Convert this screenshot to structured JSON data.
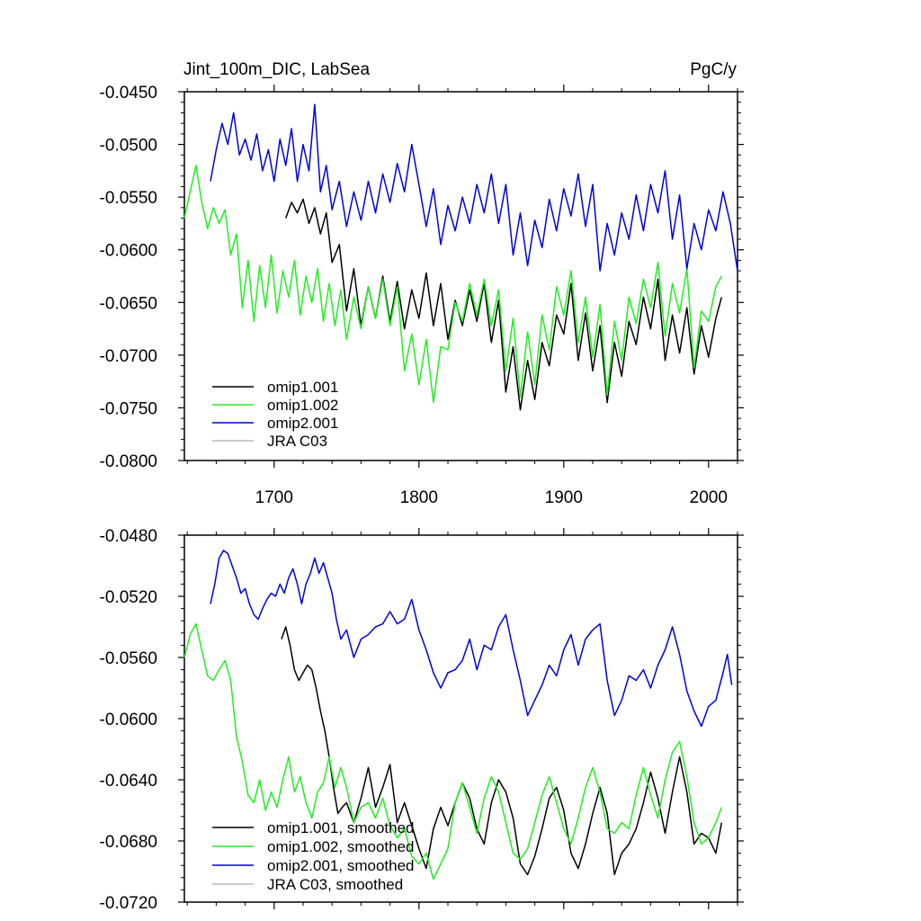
{
  "header": {
    "left_title": "Jint_100m_DIC, LabSea",
    "right_title": "PgC/y"
  },
  "colors": {
    "omip1.001": "#000000",
    "omip1.002": "#22ee22",
    "omip2.001": "#0000dd",
    "JRA C03": "#bbbbbb"
  },
  "chart_data": [
    {
      "type": "line",
      "title": "Jint_100m_DIC, LabSea",
      "units": "PgC/y",
      "xlim": [
        1638,
        2020
      ],
      "ylim": [
        -0.08,
        -0.045
      ],
      "xticks": [
        "1700",
        "1800",
        "1900",
        "2000"
      ],
      "yticks": [
        "-0.0450",
        "-0.0500",
        "-0.0550",
        "-0.0600",
        "-0.0650",
        "-0.0700",
        "-0.0750",
        "-0.0800"
      ],
      "legend_position": "bottom-left",
      "series": [
        {
          "name": "omip1.001",
          "x": [
            1708,
            1712,
            1716,
            1720,
            1724,
            1728,
            1732,
            1736,
            1740,
            1745,
            1750,
            1755,
            1760,
            1765,
            1770,
            1775,
            1780,
            1785,
            1790,
            1795,
            1800,
            1805,
            1810,
            1815,
            1820,
            1825,
            1830,
            1835,
            1840,
            1845,
            1850,
            1855,
            1860,
            1865,
            1870,
            1875,
            1880,
            1885,
            1890,
            1895,
            1900,
            1905,
            1910,
            1915,
            1920,
            1925,
            1930,
            1935,
            1940,
            1945,
            1950,
            1955,
            1960,
            1965,
            1970,
            1975,
            1980,
            1985,
            1990,
            1995,
            2000,
            2005,
            2009
          ],
          "y": [
            -0.057,
            -0.0555,
            -0.0565,
            -0.0552,
            -0.0575,
            -0.056,
            -0.0585,
            -0.0565,
            -0.0612,
            -0.0595,
            -0.0658,
            -0.0618,
            -0.0672,
            -0.0635,
            -0.0665,
            -0.0625,
            -0.0668,
            -0.063,
            -0.0675,
            -0.0638,
            -0.0665,
            -0.0622,
            -0.0672,
            -0.0632,
            -0.0685,
            -0.0648,
            -0.0672,
            -0.0638,
            -0.0668,
            -0.0632,
            -0.0688,
            -0.0648,
            -0.0735,
            -0.0692,
            -0.0752,
            -0.0705,
            -0.0742,
            -0.0688,
            -0.071,
            -0.0662,
            -0.068,
            -0.0632,
            -0.0705,
            -0.066,
            -0.0715,
            -0.0672,
            -0.0745,
            -0.0688,
            -0.072,
            -0.0668,
            -0.069,
            -0.0645,
            -0.0675,
            -0.0628,
            -0.0705,
            -0.0662,
            -0.0698,
            -0.0655,
            -0.0718,
            -0.0672,
            -0.0702,
            -0.0665,
            -0.0645
          ]
        },
        {
          "name": "omip1.002",
          "x": [
            1638,
            1642,
            1646,
            1650,
            1654,
            1658,
            1662,
            1666,
            1670,
            1674,
            1678,
            1682,
            1686,
            1690,
            1694,
            1698,
            1702,
            1706,
            1710,
            1714,
            1718,
            1722,
            1726,
            1730,
            1734,
            1738,
            1742,
            1746,
            1750,
            1755,
            1760,
            1765,
            1770,
            1775,
            1780,
            1785,
            1790,
            1795,
            1800,
            1805,
            1810,
            1815,
            1820,
            1825,
            1830,
            1835,
            1840,
            1845,
            1850,
            1855,
            1860,
            1865,
            1870,
            1875,
            1880,
            1885,
            1890,
            1895,
            1900,
            1905,
            1910,
            1915,
            1920,
            1925,
            1930,
            1935,
            1940,
            1945,
            1950,
            1955,
            1960,
            1965,
            1970,
            1975,
            1980,
            1985,
            1990,
            1995,
            2000,
            2005,
            2009
          ],
          "y": [
            -0.057,
            -0.0545,
            -0.052,
            -0.0555,
            -0.058,
            -0.056,
            -0.0575,
            -0.0562,
            -0.0605,
            -0.0585,
            -0.0655,
            -0.061,
            -0.0668,
            -0.0615,
            -0.0655,
            -0.0605,
            -0.066,
            -0.062,
            -0.0645,
            -0.061,
            -0.0662,
            -0.0625,
            -0.065,
            -0.0618,
            -0.0668,
            -0.0632,
            -0.0672,
            -0.0638,
            -0.0685,
            -0.0645,
            -0.0675,
            -0.0635,
            -0.0665,
            -0.0628,
            -0.0672,
            -0.0635,
            -0.0715,
            -0.068,
            -0.0728,
            -0.0685,
            -0.0745,
            -0.0692,
            -0.0695,
            -0.065,
            -0.0668,
            -0.0632,
            -0.0662,
            -0.0628,
            -0.0672,
            -0.0638,
            -0.0715,
            -0.0665,
            -0.074,
            -0.0678,
            -0.0728,
            -0.0662,
            -0.0695,
            -0.0635,
            -0.0662,
            -0.062,
            -0.0688,
            -0.0645,
            -0.0702,
            -0.0652,
            -0.0738,
            -0.0668,
            -0.0705,
            -0.0645,
            -0.067,
            -0.0628,
            -0.0655,
            -0.0612,
            -0.0682,
            -0.0632,
            -0.066,
            -0.0618,
            -0.0712,
            -0.0658,
            -0.0668,
            -0.0635,
            -0.0625
          ]
        },
        {
          "name": "omip2.001",
          "x": [
            1656,
            1660,
            1664,
            1668,
            1672,
            1676,
            1680,
            1684,
            1688,
            1692,
            1696,
            1700,
            1704,
            1708,
            1712,
            1716,
            1720,
            1724,
            1728,
            1732,
            1736,
            1740,
            1745,
            1750,
            1755,
            1760,
            1765,
            1770,
            1775,
            1780,
            1785,
            1790,
            1795,
            1800,
            1805,
            1810,
            1815,
            1820,
            1825,
            1830,
            1835,
            1840,
            1845,
            1850,
            1855,
            1860,
            1865,
            1870,
            1875,
            1880,
            1885,
            1890,
            1895,
            1900,
            1905,
            1910,
            1915,
            1920,
            1925,
            1930,
            1935,
            1940,
            1945,
            1950,
            1955,
            1960,
            1965,
            1970,
            1975,
            1980,
            1985,
            1990,
            1995,
            2000,
            2005,
            2010,
            2015,
            2020
          ],
          "y": [
            -0.0535,
            -0.0505,
            -0.048,
            -0.05,
            -0.047,
            -0.051,
            -0.0495,
            -0.0515,
            -0.049,
            -0.0525,
            -0.0505,
            -0.0535,
            -0.0495,
            -0.052,
            -0.0485,
            -0.0535,
            -0.05,
            -0.0525,
            -0.0462,
            -0.0545,
            -0.052,
            -0.0562,
            -0.0535,
            -0.0578,
            -0.0545,
            -0.0572,
            -0.0535,
            -0.0565,
            -0.0528,
            -0.0555,
            -0.0518,
            -0.0545,
            -0.05,
            -0.0538,
            -0.0578,
            -0.0542,
            -0.0595,
            -0.0558,
            -0.0582,
            -0.055,
            -0.0575,
            -0.0538,
            -0.0565,
            -0.0528,
            -0.0575,
            -0.0538,
            -0.0605,
            -0.0565,
            -0.0615,
            -0.0572,
            -0.0598,
            -0.0552,
            -0.0582,
            -0.0542,
            -0.0568,
            -0.0528,
            -0.0578,
            -0.0538,
            -0.062,
            -0.0575,
            -0.0605,
            -0.0565,
            -0.059,
            -0.0548,
            -0.0582,
            -0.0538,
            -0.0565,
            -0.0525,
            -0.059,
            -0.0548,
            -0.0618,
            -0.0575,
            -0.06,
            -0.0562,
            -0.0582,
            -0.0545,
            -0.0575,
            -0.062
          ]
        }
      ],
      "legend": [
        "omip1.001",
        "omip1.002",
        "omip2.001",
        "JRA C03"
      ]
    },
    {
      "type": "line",
      "xlim": [
        1638,
        2020
      ],
      "ylim": [
        -0.072,
        -0.048
      ],
      "yticks": [
        "-0.0480",
        "-0.0520",
        "-0.0560",
        "-0.0600",
        "-0.0640",
        "-0.0680",
        "-0.0720"
      ],
      "legend_position": "bottom-left",
      "series": [
        {
          "name": "omip1.001, smoothed",
          "x": [
            1705,
            1708,
            1711,
            1714,
            1717,
            1720,
            1723,
            1726,
            1729,
            1732,
            1735,
            1738,
            1741,
            1744,
            1747,
            1750,
            1755,
            1760,
            1765,
            1770,
            1775,
            1780,
            1785,
            1790,
            1795,
            1800,
            1805,
            1810,
            1815,
            1820,
            1825,
            1830,
            1835,
            1840,
            1845,
            1850,
            1855,
            1860,
            1865,
            1870,
            1875,
            1880,
            1885,
            1890,
            1895,
            1900,
            1905,
            1910,
            1915,
            1920,
            1925,
            1930,
            1935,
            1940,
            1945,
            1950,
            1955,
            1960,
            1965,
            1970,
            1975,
            1980,
            1985,
            1990,
            1995,
            2000,
            2005,
            2009
          ],
          "y": [
            -0.0548,
            -0.054,
            -0.0552,
            -0.0568,
            -0.0575,
            -0.057,
            -0.0565,
            -0.0568,
            -0.058,
            -0.0595,
            -0.0608,
            -0.0625,
            -0.0645,
            -0.0662,
            -0.0658,
            -0.0655,
            -0.0668,
            -0.0652,
            -0.0632,
            -0.0658,
            -0.0645,
            -0.063,
            -0.0668,
            -0.0655,
            -0.067,
            -0.0685,
            -0.0698,
            -0.0672,
            -0.0658,
            -0.067,
            -0.0655,
            -0.0642,
            -0.0652,
            -0.0672,
            -0.0682,
            -0.0655,
            -0.064,
            -0.0648,
            -0.0665,
            -0.0695,
            -0.0702,
            -0.069,
            -0.0672,
            -0.0652,
            -0.0645,
            -0.066,
            -0.0688,
            -0.0698,
            -0.0682,
            -0.0662,
            -0.0645,
            -0.0662,
            -0.0702,
            -0.0688,
            -0.0682,
            -0.0672,
            -0.0655,
            -0.0635,
            -0.0652,
            -0.0675,
            -0.0648,
            -0.0625,
            -0.0648,
            -0.0682,
            -0.0675,
            -0.0678,
            -0.0688,
            -0.0668
          ]
        },
        {
          "name": "omip1.002, smoothed",
          "x": [
            1638,
            1642,
            1646,
            1650,
            1654,
            1658,
            1662,
            1666,
            1670,
            1674,
            1678,
            1682,
            1686,
            1690,
            1694,
            1698,
            1702,
            1706,
            1710,
            1714,
            1718,
            1722,
            1726,
            1730,
            1734,
            1738,
            1742,
            1746,
            1750,
            1755,
            1760,
            1765,
            1770,
            1775,
            1780,
            1785,
            1790,
            1795,
            1800,
            1805,
            1810,
            1815,
            1820,
            1825,
            1830,
            1835,
            1840,
            1845,
            1850,
            1855,
            1860,
            1865,
            1870,
            1875,
            1880,
            1885,
            1890,
            1895,
            1900,
            1905,
            1910,
            1915,
            1920,
            1925,
            1930,
            1935,
            1940,
            1945,
            1950,
            1955,
            1960,
            1965,
            1970,
            1975,
            1980,
            1985,
            1990,
            1995,
            2000,
            2005,
            2009
          ],
          "y": [
            -0.056,
            -0.0545,
            -0.0538,
            -0.0555,
            -0.0572,
            -0.0575,
            -0.0568,
            -0.0562,
            -0.0575,
            -0.0612,
            -0.0628,
            -0.065,
            -0.0655,
            -0.064,
            -0.066,
            -0.0648,
            -0.0658,
            -0.064,
            -0.0625,
            -0.0648,
            -0.0638,
            -0.0655,
            -0.0665,
            -0.0648,
            -0.0642,
            -0.0625,
            -0.0645,
            -0.0632,
            -0.0645,
            -0.0668,
            -0.0658,
            -0.0655,
            -0.0665,
            -0.0652,
            -0.067,
            -0.0678,
            -0.0672,
            -0.069,
            -0.0695,
            -0.0688,
            -0.0705,
            -0.0695,
            -0.0685,
            -0.0655,
            -0.0642,
            -0.0658,
            -0.0675,
            -0.0652,
            -0.0638,
            -0.0648,
            -0.0668,
            -0.0688,
            -0.0692,
            -0.0685,
            -0.0668,
            -0.065,
            -0.0638,
            -0.0655,
            -0.0672,
            -0.0682,
            -0.0665,
            -0.0645,
            -0.0632,
            -0.0648,
            -0.0672,
            -0.0675,
            -0.0668,
            -0.0672,
            -0.065,
            -0.0632,
            -0.065,
            -0.0665,
            -0.064,
            -0.0622,
            -0.0615,
            -0.0638,
            -0.0668,
            -0.0682,
            -0.0678,
            -0.0668,
            -0.0658
          ]
        },
        {
          "name": "omip2.001, smoothed",
          "x": [
            1656,
            1659,
            1662,
            1665,
            1668,
            1671,
            1674,
            1677,
            1680,
            1683,
            1686,
            1689,
            1692,
            1695,
            1698,
            1701,
            1704,
            1707,
            1710,
            1713,
            1716,
            1719,
            1722,
            1725,
            1728,
            1731,
            1734,
            1737,
            1740,
            1743,
            1746,
            1750,
            1755,
            1760,
            1765,
            1770,
            1775,
            1780,
            1785,
            1790,
            1795,
            1800,
            1805,
            1810,
            1815,
            1820,
            1825,
            1830,
            1835,
            1840,
            1845,
            1850,
            1855,
            1860,
            1865,
            1870,
            1875,
            1880,
            1885,
            1890,
            1895,
            1900,
            1905,
            1910,
            1915,
            1920,
            1925,
            1930,
            1935,
            1940,
            1945,
            1950,
            1955,
            1960,
            1965,
            1970,
            1975,
            1980,
            1985,
            1990,
            1995,
            2000,
            2005,
            2010,
            2013,
            2016
          ],
          "y": [
            -0.0525,
            -0.0512,
            -0.0495,
            -0.049,
            -0.0492,
            -0.05,
            -0.0508,
            -0.0518,
            -0.0515,
            -0.0525,
            -0.0532,
            -0.0535,
            -0.0528,
            -0.0522,
            -0.0518,
            -0.052,
            -0.0512,
            -0.0518,
            -0.0508,
            -0.0502,
            -0.0512,
            -0.0525,
            -0.0512,
            -0.0505,
            -0.0495,
            -0.0505,
            -0.0498,
            -0.0508,
            -0.0518,
            -0.0535,
            -0.0548,
            -0.0542,
            -0.056,
            -0.0548,
            -0.0545,
            -0.054,
            -0.0538,
            -0.053,
            -0.0538,
            -0.0535,
            -0.0522,
            -0.0542,
            -0.0555,
            -0.057,
            -0.058,
            -0.057,
            -0.0568,
            -0.0562,
            -0.0548,
            -0.0568,
            -0.0552,
            -0.0555,
            -0.054,
            -0.0532,
            -0.0555,
            -0.0575,
            -0.0598,
            -0.0588,
            -0.0578,
            -0.0565,
            -0.0572,
            -0.0555,
            -0.0545,
            -0.0565,
            -0.0548,
            -0.0542,
            -0.0538,
            -0.0575,
            -0.0598,
            -0.0588,
            -0.0572,
            -0.0575,
            -0.0568,
            -0.058,
            -0.0565,
            -0.0555,
            -0.054,
            -0.0558,
            -0.0582,
            -0.0595,
            -0.0605,
            -0.0592,
            -0.0588,
            -0.057,
            -0.0558,
            -0.0578
          ]
        }
      ],
      "legend": [
        "omip1.001, smoothed",
        "omip1.002, smoothed",
        "omip2.001, smoothed",
        "JRA C03, smoothed"
      ]
    }
  ]
}
